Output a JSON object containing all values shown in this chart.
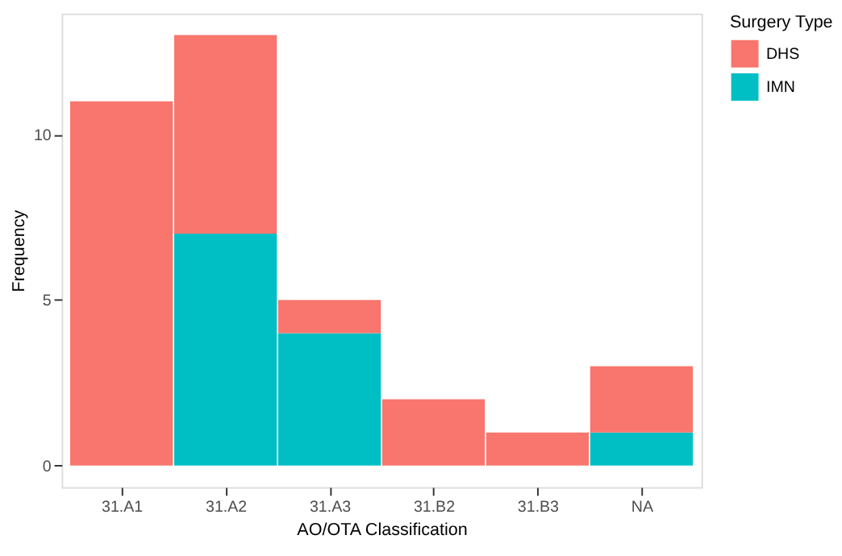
{
  "chart_data": {
    "type": "bar",
    "stacked": true,
    "xlabel": "AO/OTA Classification",
    "ylabel": "Frequency",
    "legend_title": "Surgery Type",
    "legend": "right",
    "categories": [
      "31.A1",
      "31.A2",
      "31.A3",
      "31.B2",
      "31.B3",
      "NA"
    ],
    "series": [
      {
        "name": "IMN",
        "color": "#00bfc4",
        "values": [
          0,
          7,
          4,
          0,
          0,
          1
        ]
      },
      {
        "name": "DHS",
        "color": "#f8766d",
        "values": [
          11,
          6,
          1,
          2,
          1,
          2
        ]
      }
    ],
    "ylim": [
      -0.65,
      13.65
    ],
    "yticks": [
      0,
      5,
      10
    ],
    "grid": false
  }
}
